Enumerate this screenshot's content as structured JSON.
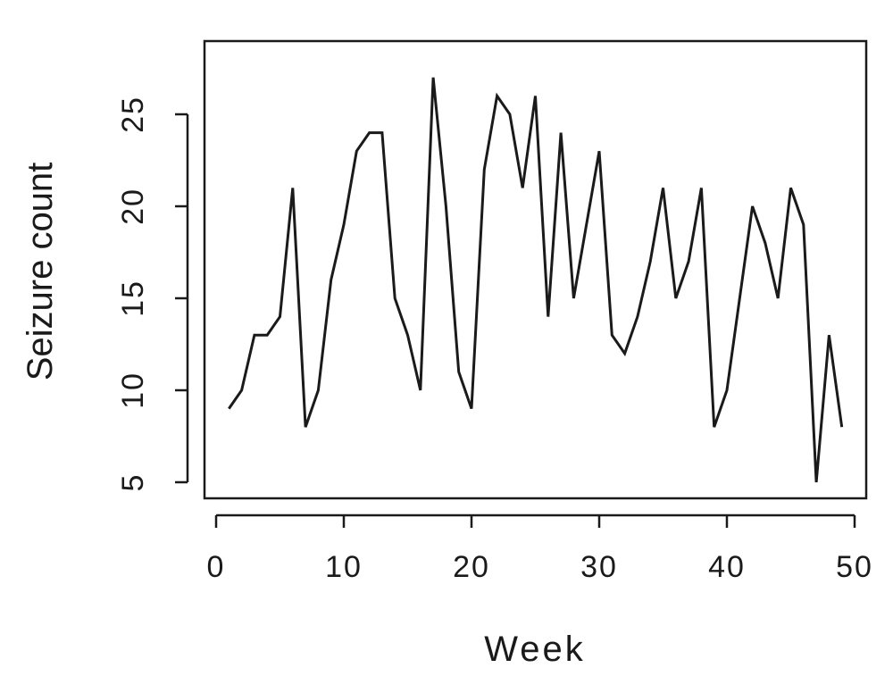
{
  "chart_data": {
    "type": "line",
    "xlabel": "Week",
    "ylabel": "Seizure count",
    "xlim": [
      0,
      50
    ],
    "ylim": [
      5,
      27
    ],
    "xticks": [
      0,
      10,
      20,
      30,
      40,
      50
    ],
    "yticks": [
      5,
      10,
      15,
      20,
      25
    ],
    "grid": false,
    "series": [
      {
        "x": [
          1,
          2,
          3,
          4,
          5,
          6,
          7,
          8,
          9,
          10,
          11,
          12,
          13,
          14,
          15,
          16,
          17,
          18,
          19,
          20,
          21,
          22,
          23,
          24,
          25,
          26,
          27,
          28,
          29,
          30,
          31,
          32,
          33,
          34,
          35,
          36,
          37,
          38,
          39,
          40,
          41,
          42,
          43,
          44,
          45,
          46,
          47,
          48,
          49
        ],
        "values": [
          9,
          10,
          13,
          13,
          14,
          21,
          8,
          10,
          16,
          19,
          23,
          24,
          24,
          15,
          13,
          10,
          27,
          20,
          11,
          9,
          22,
          26,
          25,
          21,
          26,
          14,
          24,
          15,
          19,
          23,
          13,
          12,
          14,
          17,
          21,
          15,
          17,
          21,
          8,
          10,
          15,
          20,
          18,
          15,
          21,
          19,
          5,
          13,
          8
        ]
      }
    ]
  }
}
